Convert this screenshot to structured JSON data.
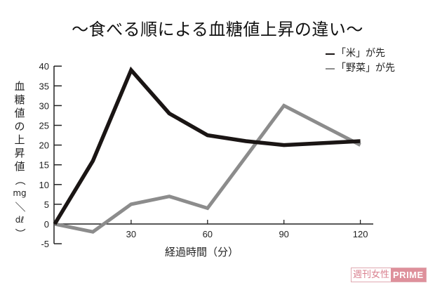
{
  "header": {
    "title": "〜食べる順による血糖値上昇の違い〜"
  },
  "legend": {
    "items": [
      {
        "label": "「米」が先",
        "color": "#1a1514"
      },
      {
        "label": "「野菜」が先",
        "color": "#8c8c8c"
      }
    ]
  },
  "axes": {
    "ylabel_chars": [
      "血",
      "糖",
      "値",
      "の",
      "上",
      "昇",
      "値",
      "（",
      "mg",
      "／",
      "dℓ",
      "）"
    ],
    "xlabel": "経過時間（分）",
    "yticks": [
      "40",
      "35",
      "30",
      "25",
      "20",
      "15",
      "10",
      "5",
      "0",
      "-5"
    ],
    "xticks": [
      "30",
      "60",
      "90",
      "120"
    ]
  },
  "watermark": {
    "left": "週刊女性",
    "right": "PRIME"
  },
  "chart_data": {
    "type": "line",
    "title": "〜食べる順による血糖値上昇の違い〜",
    "xlabel": "経過時間（分）",
    "ylabel": "血糖値の上昇値（mg／dℓ）",
    "x": [
      0,
      15,
      30,
      45,
      60,
      75,
      90,
      120
    ],
    "xticks": [
      30,
      60,
      90,
      120
    ],
    "yticks": [
      -5,
      0,
      5,
      10,
      15,
      20,
      25,
      30,
      35,
      40
    ],
    "ylim": [
      -5,
      40
    ],
    "xlim": [
      0,
      125
    ],
    "grid": false,
    "legend_position": "top-right",
    "series": [
      {
        "name": "「米」が先",
        "color": "#1a1514",
        "values": [
          0,
          16,
          39,
          28,
          22.5,
          21,
          20,
          21
        ]
      },
      {
        "name": "「野菜」が先",
        "color": "#8c8c8c",
        "values": [
          0,
          -2,
          5,
          7,
          4,
          17,
          30,
          20
        ]
      }
    ]
  }
}
